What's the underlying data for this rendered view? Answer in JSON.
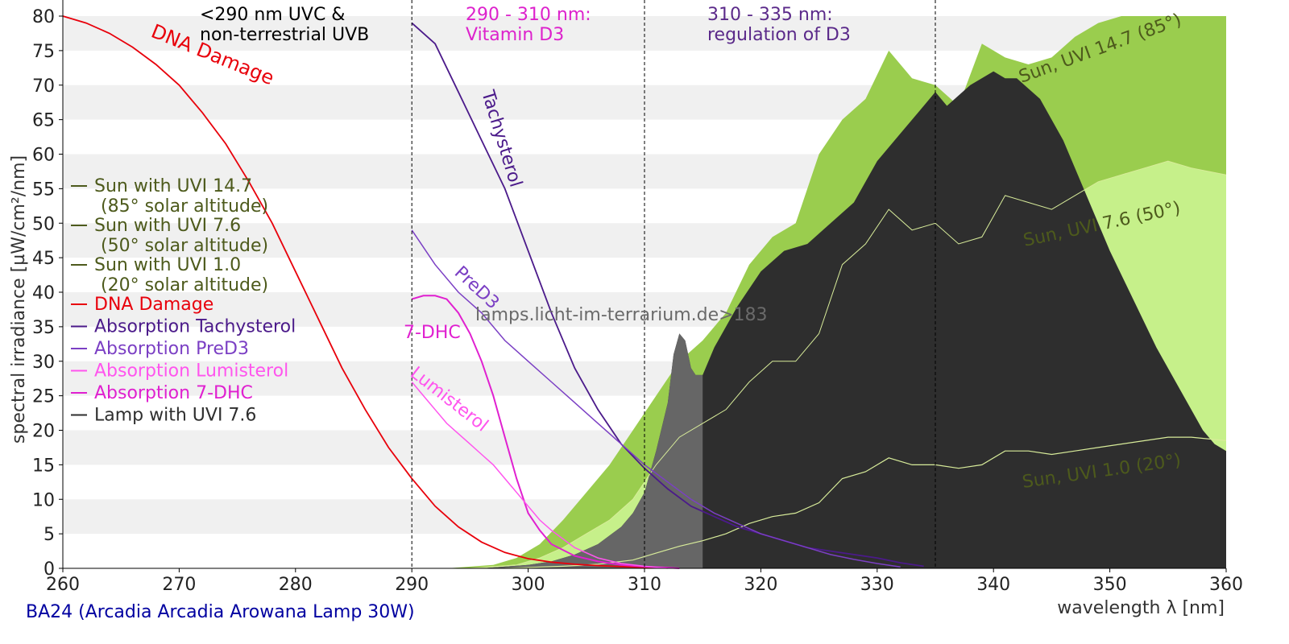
{
  "colors": {
    "dna": "#e8000b",
    "tachysterol": "#4b1a8a",
    "pred3": "#7b3fc4",
    "lumisterol": "#ff55ee",
    "dhc7": "#e020d0",
    "sun147": "#9acd4e",
    "sun76": "#c6f08a",
    "sun10_line": "#d8ec9a",
    "sunlabel": "#4d5a1c",
    "lamp": "#2e2e2e",
    "lamp_dim": "#666666",
    "band_uvc": "#000000",
    "band_d3": "#dd22cc",
    "band_reg": "#5b2a8a",
    "footer": "#0000a0",
    "watermark": "#6a6a6a",
    "grid_band": "#f0f0f0"
  },
  "footer_label": "BA24 (Arcadia Arcadia Arowana Lamp 30W)",
  "watermark": "lamps.licht-im-terrarium.de>183",
  "chart_data": {
    "type": "area",
    "xlabel": "wavelength λ [nm]",
    "ylabel": "spectral irradiance [µW/cm²/nm]",
    "xlim": [
      260,
      360
    ],
    "ylim": [
      0,
      80
    ],
    "xticks": [
      "260",
      "270",
      "280",
      "290",
      "300",
      "310",
      "320",
      "330",
      "340",
      "350",
      "360"
    ],
    "yticks": [
      "0",
      "5",
      "10",
      "15",
      "20",
      "25",
      "30",
      "35",
      "40",
      "45",
      "50",
      "55",
      "60",
      "65",
      "70",
      "75",
      "80"
    ],
    "grid": true,
    "vlines": [
      290,
      310,
      335
    ],
    "bands": [
      {
        "line1": "<290 nm UVC &",
        "line2": "non-terrestrial UVB",
        "color": "band_uvc"
      },
      {
        "line1": "290 - 310 nm:",
        "line2": "Vitamin D3",
        "color": "band_d3"
      },
      {
        "line1": "310 - 335 nm:",
        "line2": "regulation of D3",
        "color": "band_reg"
      }
    ],
    "legend": {
      "placement": "left",
      "entries": [
        {
          "label": "Sun with UVI 14.7",
          "sub": "(85° solar altitude)",
          "color": "sunlabel"
        },
        {
          "label": "Sun with UVI 7.6",
          "sub": "(50° solar altitude)",
          "color": "sunlabel"
        },
        {
          "label": "Sun with UVI 1.0",
          "sub": "(20° solar altitude)",
          "color": "sunlabel"
        },
        {
          "label": "DNA Damage",
          "color": "dna"
        },
        {
          "label": "Absorption Tachysterol",
          "color": "tachysterol"
        },
        {
          "label": "Absorption PreD3",
          "color": "pred3"
        },
        {
          "label": "Absorption Lumisterol",
          "color": "lumisterol"
        },
        {
          "label": "Absorption 7-DHC",
          "color": "dhc7"
        },
        {
          "label": "Lamp with UVI 7.6",
          "color": "lamp"
        }
      ]
    },
    "curve_labels": {
      "dna": "DNA Damage",
      "tachysterol": "Tachysterol",
      "pred3": "PreD3",
      "dhc7": "7-DHC",
      "lumisterol": "Lumisterol",
      "sun147": "Sun, UVI 14.7 (85°)",
      "sun76": "Sun, UVI 7.6 (50°)",
      "sun10": "Sun, UVI 1.0 (20°)"
    },
    "series": [
      {
        "key": "sun147",
        "kind": "area",
        "x": [
          293,
          297,
          299,
          301,
          303,
          305,
          307,
          309,
          311,
          313,
          315,
          317,
          319,
          321,
          323,
          325,
          327,
          329,
          331,
          333,
          335,
          337,
          339,
          341,
          343,
          345,
          347,
          349,
          351,
          353,
          355,
          357,
          360
        ],
        "y": [
          0,
          0.5,
          1.5,
          3.5,
          7,
          11,
          15,
          20,
          25,
          30,
          33,
          37,
          44,
          48,
          50,
          60,
          65,
          68,
          75,
          71,
          70,
          67,
          76,
          74,
          73,
          74,
          77,
          79,
          80,
          81,
          82,
          81,
          80
        ]
      },
      {
        "key": "sun76",
        "kind": "area",
        "x": [
          295,
          299,
          301,
          303,
          305,
          307,
          309,
          311,
          313,
          315,
          317,
          319,
          321,
          323,
          325,
          327,
          329,
          331,
          333,
          335,
          337,
          339,
          341,
          343,
          345,
          347,
          349,
          351,
          353,
          355,
          357,
          360
        ],
        "y": [
          0,
          0.5,
          1.5,
          3,
          5,
          7,
          10,
          15,
          19,
          21,
          23,
          27,
          30,
          30,
          34,
          44,
          47,
          52,
          49,
          50,
          47,
          48,
          54,
          53,
          52,
          54,
          56,
          57,
          58,
          59,
          58,
          57
        ]
      },
      {
        "key": "sun10",
        "kind": "line",
        "x": [
          298,
          303,
          306,
          309,
          311,
          313,
          315,
          317,
          319,
          321,
          323,
          325,
          327,
          329,
          331,
          333,
          335,
          337,
          339,
          341,
          343,
          345,
          347,
          349,
          351,
          353,
          355,
          357,
          360
        ],
        "y": [
          0,
          0.3,
          0.6,
          1.2,
          2.2,
          3.2,
          4,
          5,
          6.5,
          7.5,
          8,
          9.5,
          13,
          14,
          16,
          15,
          15,
          14.5,
          15,
          17,
          17,
          16.5,
          17,
          17.5,
          18,
          18.5,
          19,
          19,
          18.5
        ]
      },
      {
        "key": "lamp",
        "kind": "area",
        "x": [
          296,
          300,
          302,
          304,
          306,
          308,
          309,
          310,
          311,
          312,
          312.5,
          313,
          313.5,
          314,
          314.4,
          315,
          316,
          318,
          320,
          322,
          324,
          326,
          328,
          330,
          332,
          334,
          335,
          336,
          338,
          340,
          341,
          342,
          344,
          346,
          348,
          350,
          352,
          354,
          356,
          358,
          359,
          360
        ],
        "y": [
          0,
          0.5,
          1,
          2,
          3.5,
          6,
          8,
          11,
          17,
          24,
          31,
          34,
          33,
          29,
          28,
          28,
          32,
          38,
          43,
          46,
          47,
          50,
          53,
          59,
          63,
          67,
          69,
          67,
          70,
          72,
          71,
          71,
          68,
          62,
          54,
          46,
          39,
          32,
          26,
          20,
          18,
          17
        ]
      },
      {
        "key": "dna",
        "kind": "line",
        "x": [
          260,
          262,
          264,
          266,
          268,
          270,
          272,
          274,
          276,
          278,
          280,
          282,
          284,
          286,
          288,
          290,
          292,
          294,
          296,
          298,
          300,
          302,
          304,
          306,
          308,
          310,
          312
        ],
        "y": [
          80,
          79,
          77.5,
          75.5,
          73,
          70,
          66,
          61.5,
          56,
          50,
          43,
          36,
          29,
          23,
          17.5,
          13,
          9,
          6,
          3.8,
          2.3,
          1.4,
          0.9,
          0.6,
          0.4,
          0.25,
          0.15,
          0.1
        ]
      },
      {
        "key": "tachysterol",
        "kind": "line",
        "x": [
          290,
          292,
          294,
          296,
          298,
          300,
          302,
          304,
          306,
          308,
          310,
          312,
          314,
          316,
          318,
          320,
          322,
          324,
          326,
          328,
          330,
          332,
          334
        ],
        "y": [
          79,
          76,
          69,
          62,
          55,
          46,
          37,
          29,
          23,
          18,
          14.5,
          11.5,
          9,
          7.5,
          6,
          5,
          4,
          3,
          2.5,
          2,
          1.5,
          0.8,
          0.3
        ]
      },
      {
        "key": "pred3",
        "kind": "line",
        "x": [
          290,
          292,
          294,
          296,
          298,
          300,
          302,
          304,
          306,
          308,
          310,
          312,
          314,
          316,
          318,
          320,
          322,
          324,
          326,
          328,
          330,
          332
        ],
        "y": [
          49,
          44,
          40,
          37,
          33,
          30,
          27,
          24,
          21,
          18,
          15,
          12.5,
          10,
          8,
          6.5,
          5,
          4,
          3,
          2,
          1.3,
          0.7,
          0.2
        ]
      },
      {
        "key": "dhc7",
        "kind": "line",
        "x": [
          290,
          291,
          292,
          293,
          294,
          295,
          296,
          297,
          298,
          299,
          300,
          301,
          302,
          304,
          306,
          308,
          310,
          312,
          313
        ],
        "y": [
          39,
          39.5,
          39.5,
          39,
          37,
          34,
          30,
          25,
          19,
          13,
          8,
          5.5,
          3.5,
          1.8,
          1,
          0.5,
          0.25,
          0.1,
          0
        ]
      },
      {
        "key": "lumisterol",
        "kind": "line",
        "x": [
          290,
          291,
          292,
          293,
          294,
          295,
          296,
          297,
          298,
          299,
          300,
          301,
          302,
          304,
          306,
          308,
          310,
          312
        ],
        "y": [
          27,
          25,
          23,
          21,
          19.5,
          18,
          16.5,
          15,
          13,
          11,
          9,
          7,
          5.5,
          3,
          1.5,
          0.7,
          0.3,
          0
        ]
      }
    ]
  }
}
